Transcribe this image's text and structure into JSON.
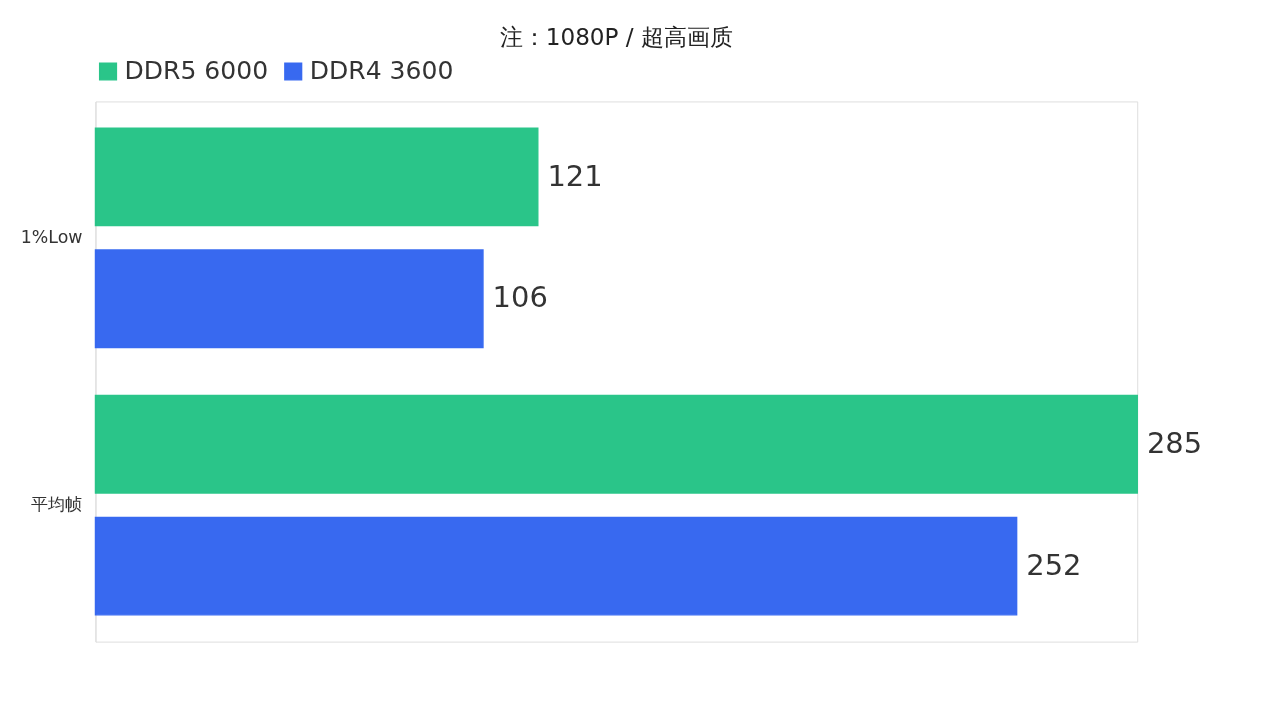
{
  "chart_data": {
    "type": "bar",
    "orientation": "horizontal",
    "title": "注：1080P / 超高画质",
    "categories": [
      "1%Low",
      "平均帧"
    ],
    "series": [
      {
        "name": "DDR5 6000",
        "color": "#1fc283",
        "values": [
          121,
          285
        ]
      },
      {
        "name": "DDR4 3600",
        "color": "#2e62f0",
        "values": [
          106,
          252
        ]
      }
    ],
    "data_labels": true,
    "legend": "top",
    "grid": false
  }
}
